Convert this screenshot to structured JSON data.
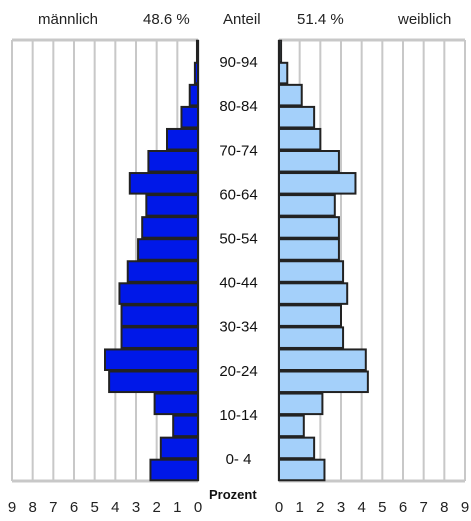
{
  "chart_data": {
    "type": "bar",
    "header": {
      "left_label": "männlich",
      "left_share": "48.6 %",
      "center_label": "Anteil",
      "right_share": "51.4 %",
      "right_label": "weiblich"
    },
    "age_labels": [
      {
        "label": "0- 4",
        "index": 0
      },
      {
        "label": "10-14",
        "index": 2
      },
      {
        "label": "20-24",
        "index": 4
      },
      {
        "label": "30-34",
        "index": 6
      },
      {
        "label": "40-44",
        "index": 8
      },
      {
        "label": "50-54",
        "index": 10
      },
      {
        "label": "60-64",
        "index": 12
      },
      {
        "label": "70-74",
        "index": 14
      },
      {
        "label": "80-84",
        "index": 16
      },
      {
        "label": "90-94",
        "index": 18
      }
    ],
    "x_axis_label": "Prozent",
    "x_ticks_left": [
      "9",
      "8",
      "7",
      "6",
      "5",
      "4",
      "3",
      "2",
      "1",
      "0"
    ],
    "x_ticks_right": [
      "0",
      "1",
      "2",
      "3",
      "4",
      "5",
      "6",
      "7",
      "8",
      "9"
    ],
    "xlim": [
      0,
      9
    ],
    "series": [
      {
        "name": "männlich",
        "color": "#0018e8",
        "values": [
          2.3,
          1.8,
          1.2,
          2.1,
          4.3,
          4.5,
          3.7,
          3.7,
          3.8,
          3.4,
          2.9,
          2.7,
          2.5,
          3.3,
          2.4,
          1.5,
          0.8,
          0.4,
          0.15,
          0.05
        ]
      },
      {
        "name": "weiblich",
        "color": "#a4d0fa",
        "values": [
          2.2,
          1.7,
          1.2,
          2.1,
          4.3,
          4.2,
          3.1,
          3.0,
          3.3,
          3.1,
          2.9,
          2.9,
          2.7,
          3.7,
          2.9,
          2.0,
          1.7,
          1.1,
          0.4,
          0.1
        ]
      }
    ]
  }
}
